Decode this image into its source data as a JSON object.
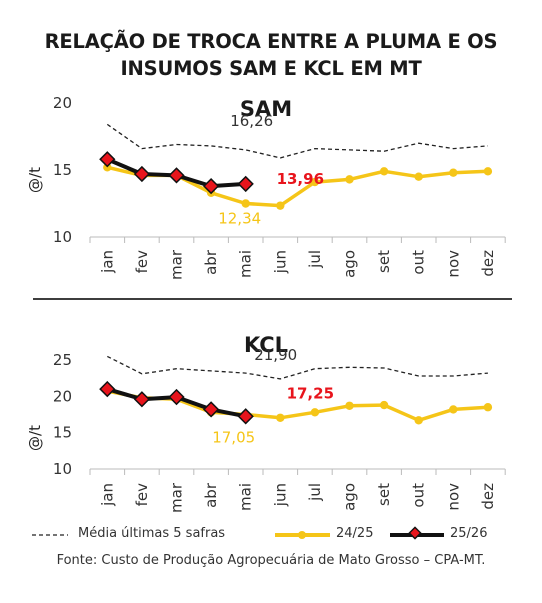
{
  "title_line1": "RELAÇÃO DE TROCA ENTRE A PLUMA E OS",
  "title_line2": "INSUMOS SAM E KCL EM MT",
  "footer": "Fonte: Custo de Produção Agropecuária de Mato Grosso – CPA-MT.",
  "colors": {
    "avg": "#222222",
    "prev": "#f5c518",
    "curr": "#111111",
    "marker": "#e8141c",
    "highlight": "#e8141c"
  },
  "chart_data": [
    {
      "type": "line",
      "title": "SAM",
      "ylabel": "@/t",
      "ylim": [
        10,
        20
      ],
      "yticks": [
        10,
        15,
        20
      ],
      "categories": [
        "jan",
        "fev",
        "mar",
        "abr",
        "mai",
        "jun",
        "jul",
        "ago",
        "set",
        "out",
        "nov",
        "dez"
      ],
      "series": [
        {
          "name": "Média últimas 5 safras",
          "style": "dashed",
          "values": [
            18.4,
            16.6,
            16.9,
            16.8,
            16.5,
            15.9,
            16.6,
            16.5,
            16.4,
            17.0,
            16.6,
            16.8
          ]
        },
        {
          "name": "24/25",
          "style": "yellow-dots",
          "values": [
            15.2,
            14.6,
            14.6,
            13.3,
            12.5,
            12.34,
            14.1,
            14.3,
            14.9,
            14.5,
            14.8,
            14.9
          ]
        },
        {
          "name": "25/26",
          "style": "black-diamonds",
          "values": [
            15.8,
            14.7,
            14.6,
            13.8,
            13.96,
            null,
            null,
            null,
            null,
            null,
            null,
            null
          ]
        }
      ],
      "annotations": [
        {
          "text": "16,26",
          "series": "Média últimas 5 safras"
        },
        {
          "text": "12,34",
          "series": "24/25"
        },
        {
          "text": "13,96",
          "series": "25/26",
          "highlight": true
        }
      ]
    },
    {
      "type": "line",
      "title": "KCL",
      "ylabel": "@/t",
      "ylim": [
        10,
        25
      ],
      "yticks": [
        10,
        15,
        20,
        25
      ],
      "categories": [
        "jan",
        "fev",
        "mar",
        "abr",
        "mai",
        "jun",
        "jul",
        "ago",
        "set",
        "out",
        "nov",
        "dez"
      ],
      "series": [
        {
          "name": "Média últimas 5 safras",
          "style": "dashed",
          "values": [
            25.5,
            23.1,
            23.8,
            23.5,
            23.2,
            22.4,
            23.8,
            24.0,
            23.9,
            22.8,
            22.8,
            23.2
          ]
        },
        {
          "name": "24/25",
          "style": "yellow-dots",
          "values": [
            20.7,
            19.8,
            19.6,
            17.8,
            17.5,
            17.05,
            17.8,
            18.7,
            18.8,
            16.7,
            18.2,
            18.5
          ]
        },
        {
          "name": "25/26",
          "style": "black-diamonds",
          "values": [
            21.0,
            19.6,
            19.9,
            18.2,
            17.25,
            null,
            null,
            null,
            null,
            null,
            null,
            null
          ]
        }
      ],
      "annotations": [
        {
          "text": "21,90",
          "series": "Média últimas 5 safras"
        },
        {
          "text": "17,05",
          "series": "24/25"
        },
        {
          "text": "17,25",
          "series": "25/26",
          "highlight": true
        }
      ]
    }
  ],
  "legend": [
    {
      "label": "Média últimas 5 safras",
      "style": "dashed"
    },
    {
      "label": "24/25",
      "style": "yellow-dots"
    },
    {
      "label": "25/26",
      "style": "black-diamonds"
    }
  ]
}
